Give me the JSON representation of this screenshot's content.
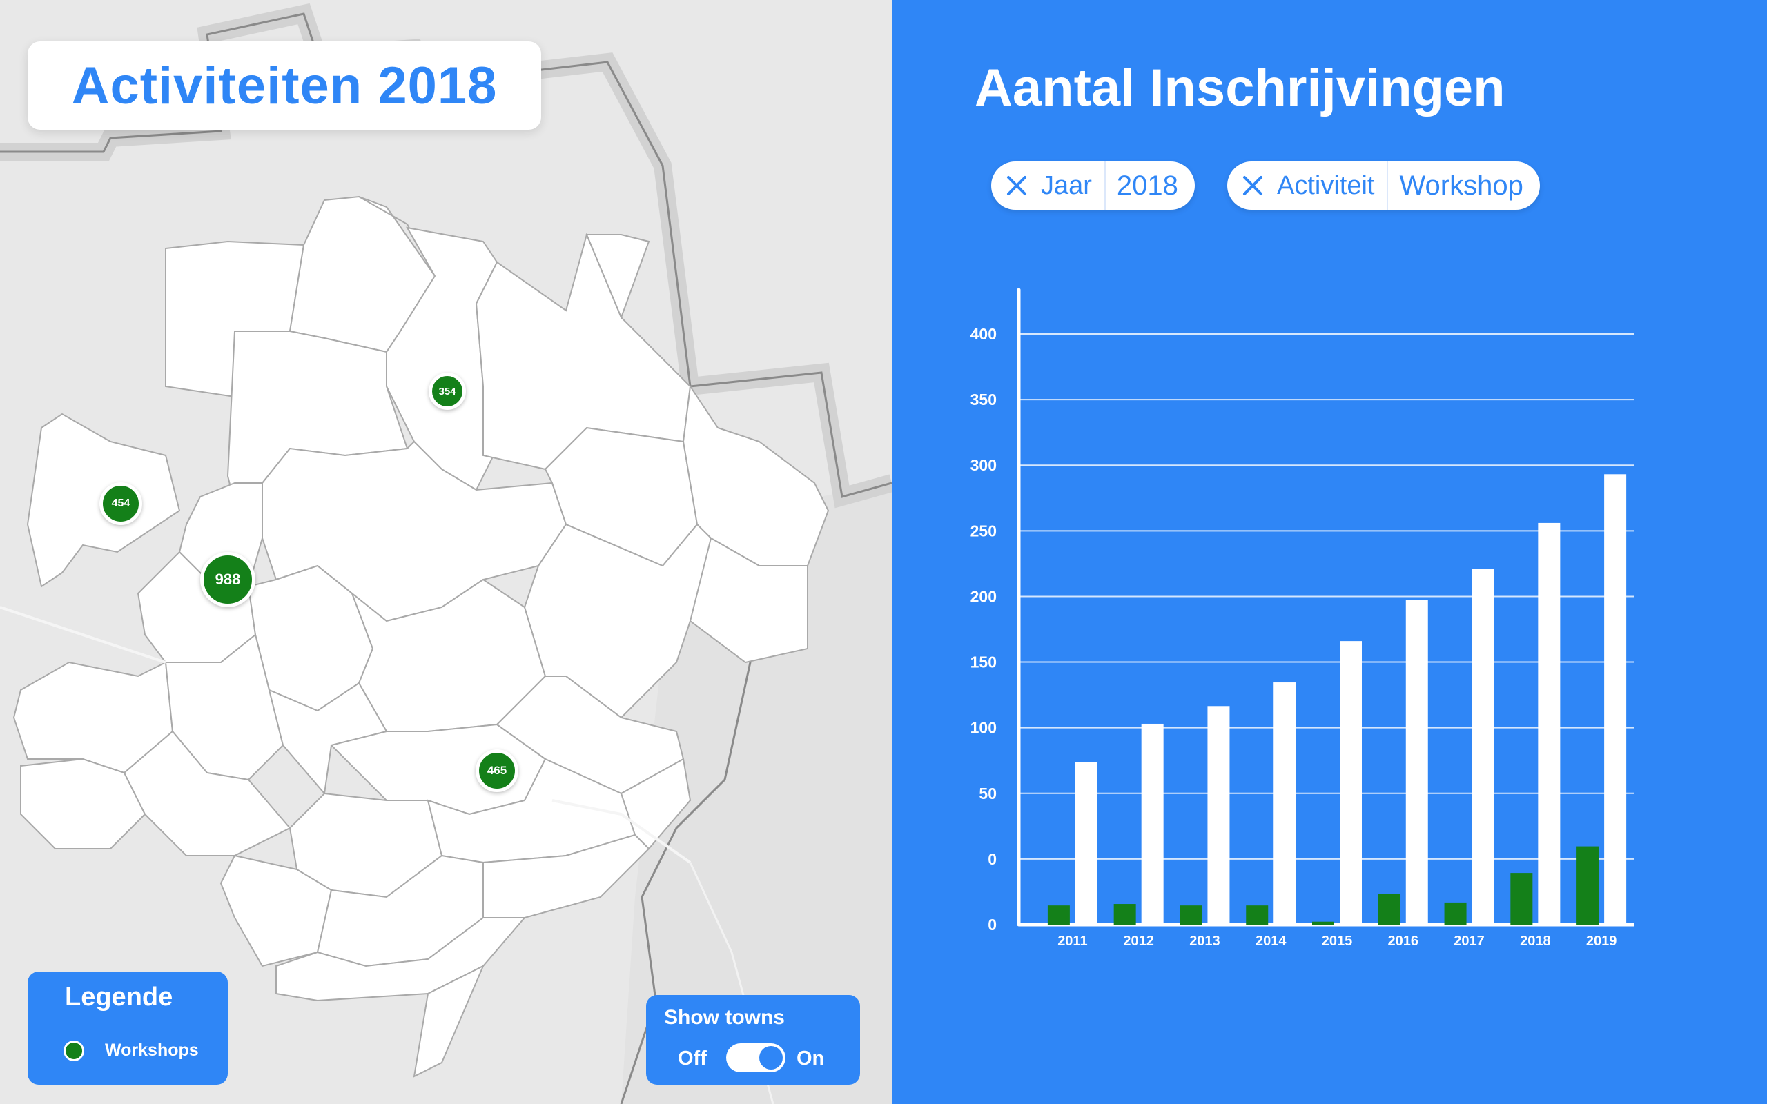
{
  "map": {
    "title": "Activiteiten 2018",
    "markers": [
      {
        "label": "354"
      },
      {
        "label": "454"
      },
      {
        "label": "988"
      },
      {
        "label": "465"
      }
    ],
    "legend": {
      "title": "Legende",
      "items": [
        {
          "label": "Workshops",
          "color": "#148019"
        }
      ]
    },
    "show_towns": {
      "title": "Show towns",
      "off_label": "Off",
      "on_label": "On",
      "state": "On"
    }
  },
  "chart": {
    "heading": "Aantal Inschrijvingen",
    "filters": [
      {
        "key": "Jaar",
        "value": "2018"
      },
      {
        "key": "Activiteit",
        "value": "Workshop"
      }
    ]
  },
  "colors": {
    "accent_blue": "#2f86f6",
    "marker_green": "#148019",
    "map_background": "#e9e9e9"
  },
  "chart_data": {
    "type": "bar",
    "categories": [
      "2011",
      "2012",
      "2013",
      "2014",
      "2015",
      "2016",
      "2017",
      "2018",
      "2019"
    ],
    "y_tick_labels": [
      "0",
      "0",
      "50",
      "100",
      "150",
      "200",
      "250",
      "300",
      "350",
      "400"
    ],
    "series": [
      {
        "values": [
          13,
          14,
          13,
          13,
          2,
          21,
          15,
          35,
          53
        ],
        "color": "#148019"
      },
      {
        "values": [
          110,
          136,
          148,
          164,
          192,
          220,
          241,
          272,
          305
        ],
        "color": "#ffffff"
      }
    ],
    "ylim": [
      0,
      400
    ],
    "grid": true
  }
}
